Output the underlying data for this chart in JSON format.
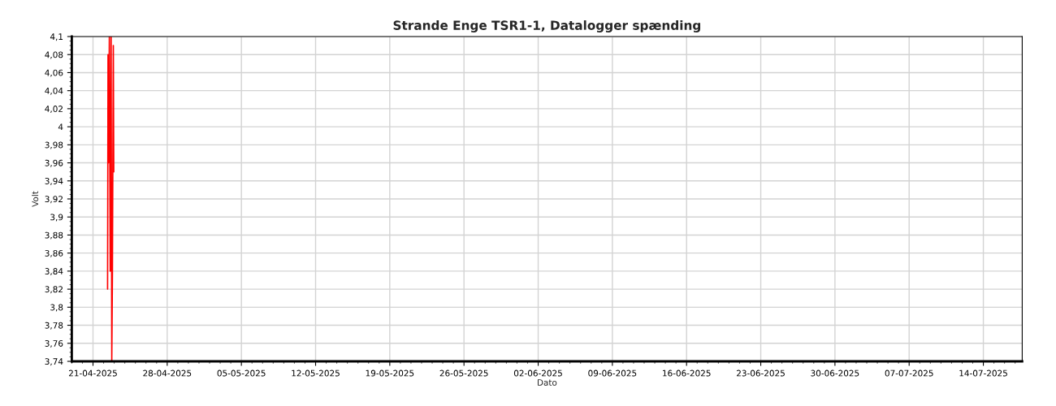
{
  "chart_data": {
    "type": "line",
    "title": "Strande Enge TSR1-1, Datalogger spænding",
    "xlabel": "Dato",
    "ylabel": "Volt",
    "x": [
      "2025-04-22T09:00",
      "2025-04-22T10:00",
      "2025-04-22T11:00",
      "2025-04-22T13:00",
      "2025-04-22T15:00",
      "2025-04-22T17:00",
      "2025-04-22T18:30",
      "2025-04-22T20:00",
      "2025-04-22T22:00",
      "2025-04-22T23:00"
    ],
    "series": [
      {
        "color": "#ff0000",
        "values": [
          3.82,
          4.08,
          3.96,
          4.1,
          3.84,
          4.1,
          3.74,
          3.84,
          4.09,
          3.95
        ]
      }
    ],
    "xlim": [
      "2025-04-19",
      "2025-07-17T16:00"
    ],
    "xticks": [
      {
        "value": "2025-04-21",
        "label": "21-04-2025"
      },
      {
        "value": "2025-04-28",
        "label": "28-04-2025"
      },
      {
        "value": "2025-05-05",
        "label": "05-05-2025"
      },
      {
        "value": "2025-05-12",
        "label": "12-05-2025"
      },
      {
        "value": "2025-05-19",
        "label": "19-05-2025"
      },
      {
        "value": "2025-05-26",
        "label": "26-05-2025"
      },
      {
        "value": "2025-06-02",
        "label": "02-06-2025"
      },
      {
        "value": "2025-06-09",
        "label": "09-06-2025"
      },
      {
        "value": "2025-06-16",
        "label": "16-06-2025"
      },
      {
        "value": "2025-06-23",
        "label": "23-06-2025"
      },
      {
        "value": "2025-06-30",
        "label": "30-06-2025"
      },
      {
        "value": "2025-07-07",
        "label": "07-07-2025"
      },
      {
        "value": "2025-07-14",
        "label": "14-07-2025"
      }
    ],
    "ylim": [
      3.74,
      4.1
    ],
    "yticks": [
      {
        "value": 3.74,
        "label": "3,74"
      },
      {
        "value": 3.76,
        "label": "3,76"
      },
      {
        "value": 3.78,
        "label": "3,78"
      },
      {
        "value": 3.8,
        "label": "3,8"
      },
      {
        "value": 3.82,
        "label": "3,82"
      },
      {
        "value": 3.84,
        "label": "3,84"
      },
      {
        "value": 3.86,
        "label": "3,86"
      },
      {
        "value": 3.88,
        "label": "3,88"
      },
      {
        "value": 3.9,
        "label": "3,9"
      },
      {
        "value": 3.92,
        "label": "3,92"
      },
      {
        "value": 3.94,
        "label": "3,94"
      },
      {
        "value": 3.96,
        "label": "3,96"
      },
      {
        "value": 3.98,
        "label": "3,98"
      },
      {
        "value": 4,
        "label": "4"
      },
      {
        "value": 4.02,
        "label": "4,02"
      },
      {
        "value": 4.04,
        "label": "4,04"
      },
      {
        "value": 4.06,
        "label": "4,06"
      },
      {
        "value": 4.08,
        "label": "4,08"
      },
      {
        "value": 4.1,
        "label": "4,1"
      }
    ],
    "grid": true,
    "legend": false,
    "marker": "none",
    "line_style": "solid"
  }
}
